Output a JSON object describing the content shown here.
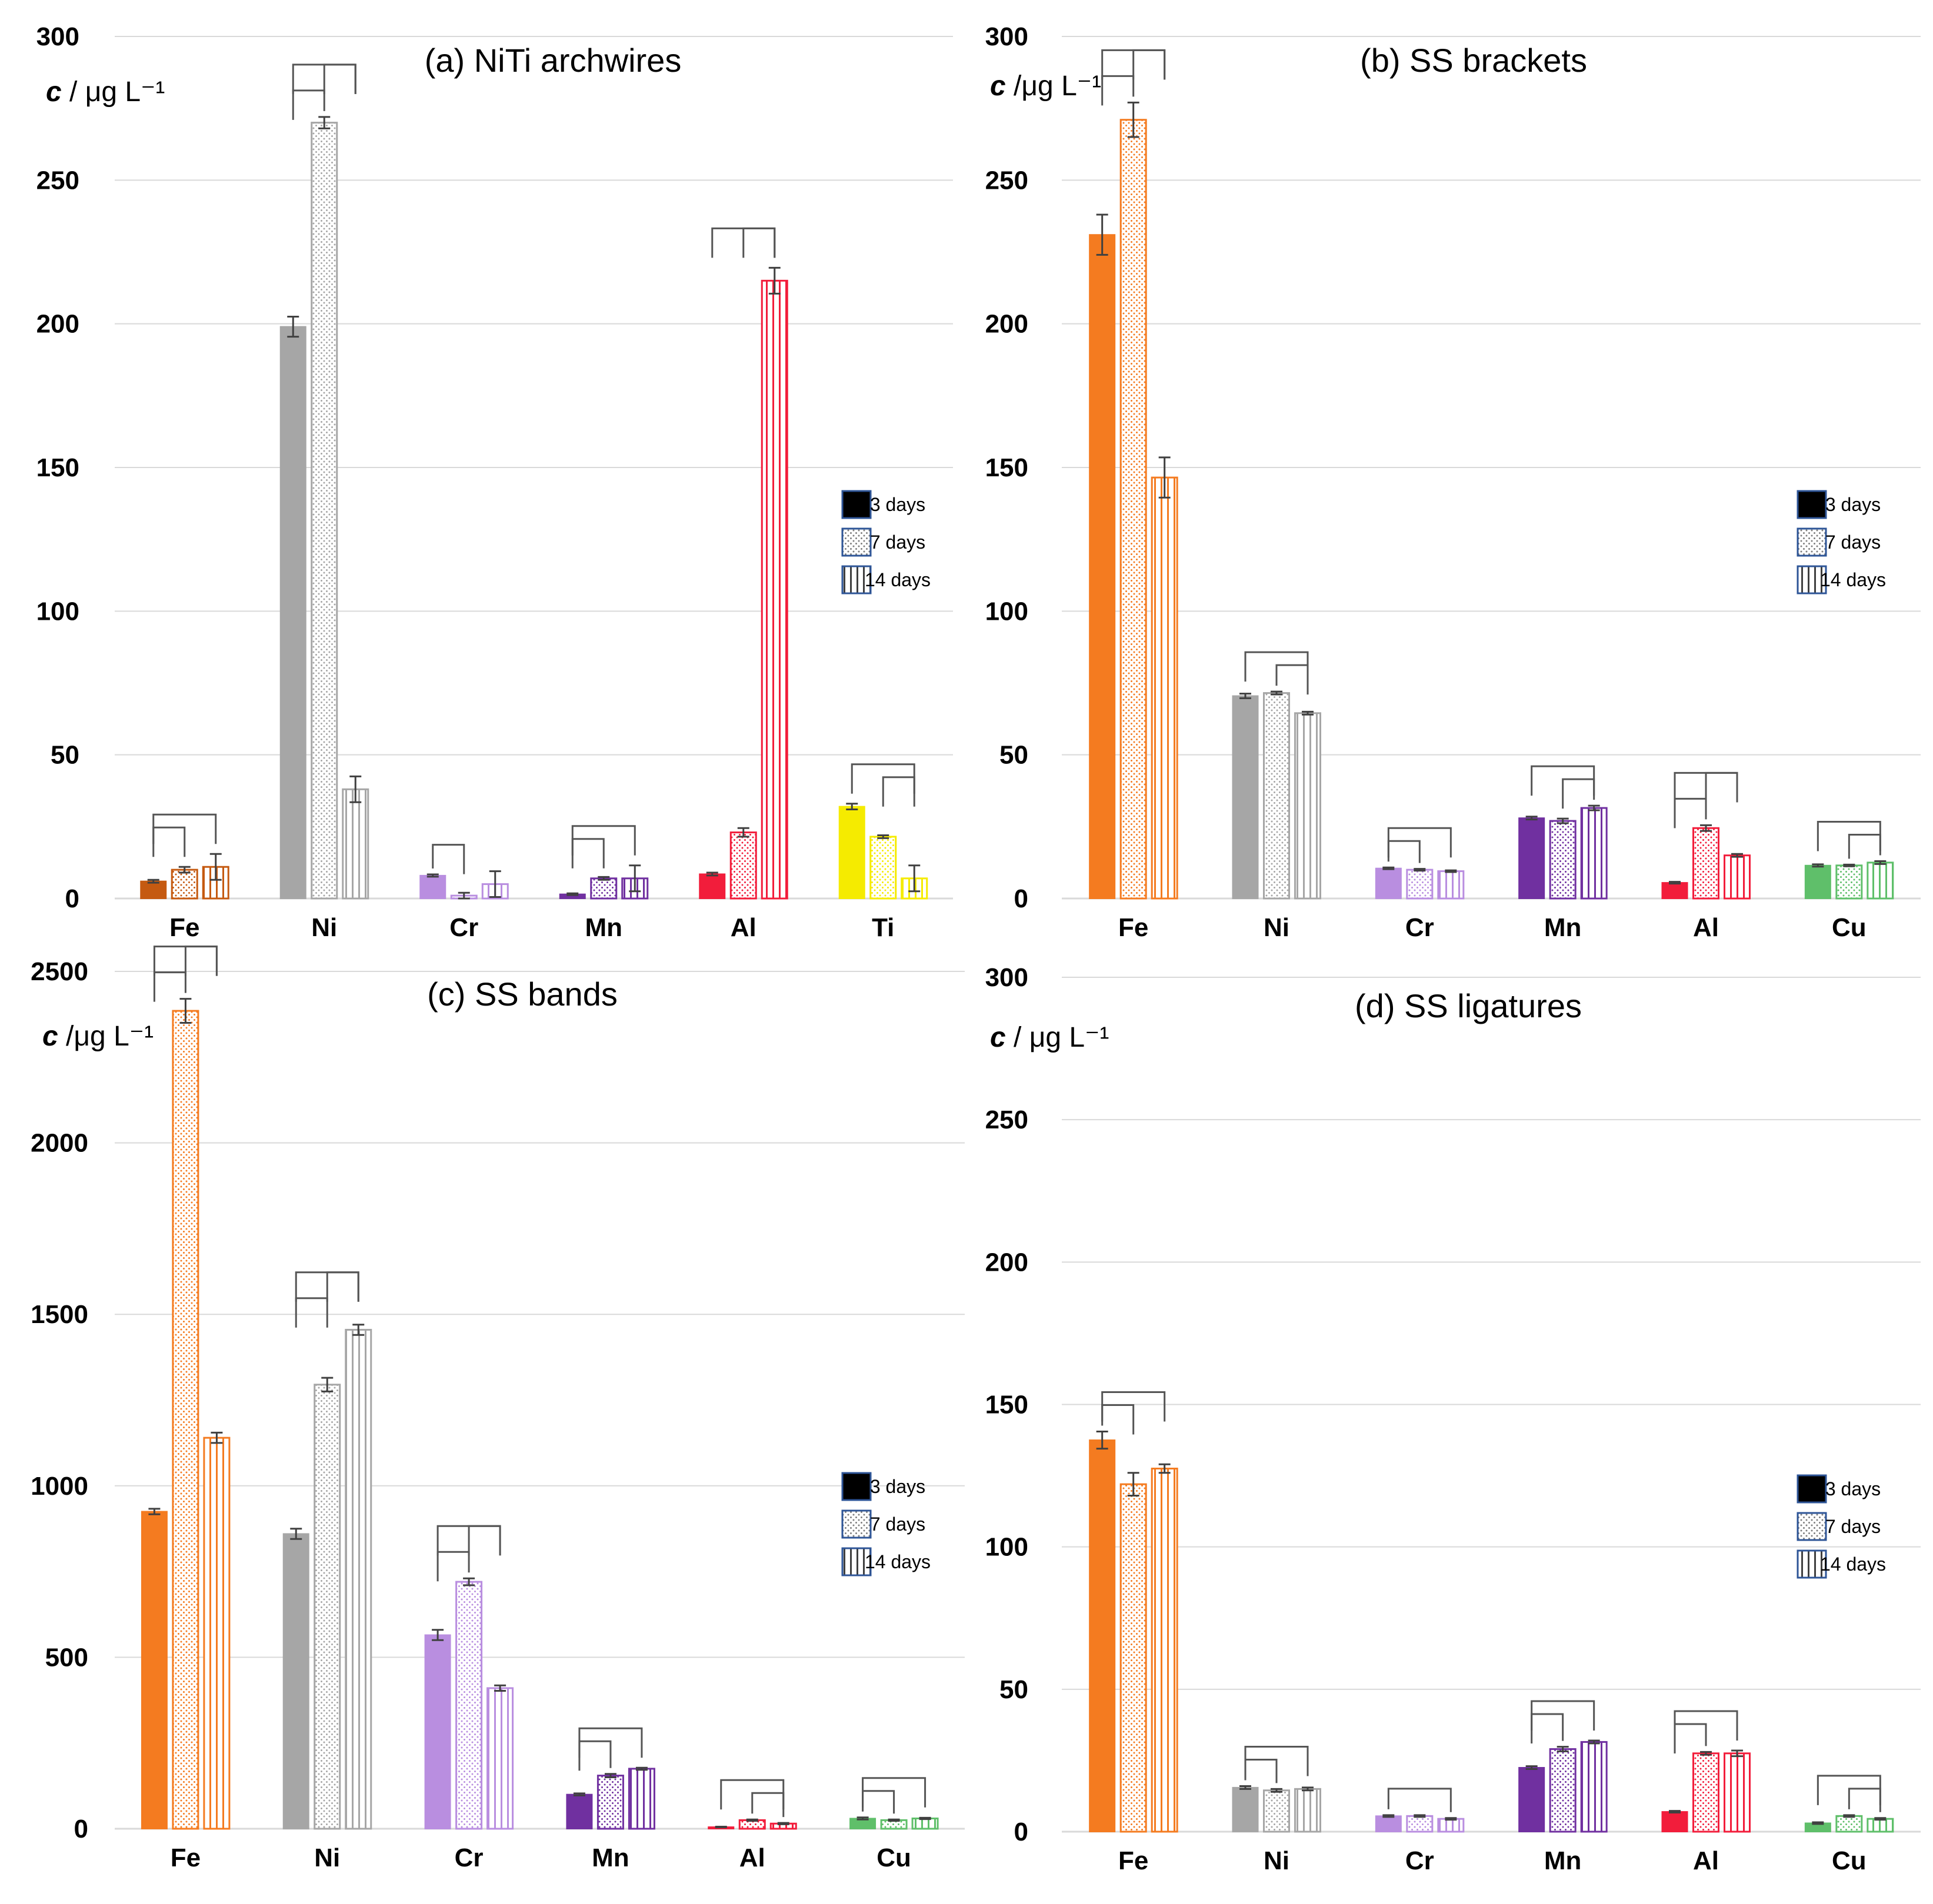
{
  "legend": {
    "labels": [
      "3 days",
      "7 days",
      "14 days"
    ]
  },
  "colors": {
    "Fe": "#f47b20",
    "Ni": "#a6a6a6",
    "Cr": "#b98ee0",
    "Mn": "#7030a0",
    "Al": "#f21d3b",
    "Ti": "#f5eb00",
    "Cu": "#5fbf6a",
    "Fe_dark": "#c55a11"
  },
  "chart_data": [
    {
      "id": "a",
      "type": "bar",
      "title": "(a) NiTi archwires",
      "ylabel_var": "c",
      "ylabel_unit": " / μg L⁻¹",
      "ylim": [
        0,
        300
      ],
      "yticks": [
        0,
        50,
        100,
        150,
        200,
        250,
        300
      ],
      "categories": [
        "Fe",
        "Ni",
        "Cr",
        "Mn",
        "Al",
        "Ti"
      ],
      "series": [
        {
          "name": "3 days",
          "values": [
            6,
            199,
            8,
            1.5,
            8.5,
            32
          ],
          "errors": [
            0.5,
            3.5,
            0.4,
            0.3,
            0.5,
            1
          ]
        },
        {
          "name": "7 days",
          "values": [
            10,
            270,
            1,
            7,
            23,
            21.5
          ],
          "errors": [
            1,
            2,
            1,
            0.5,
            1.5,
            0.5
          ]
        },
        {
          "name": "14 days",
          "values": [
            11,
            38,
            5,
            7,
            215,
            7
          ],
          "errors": [
            4.5,
            4.5,
            4.5,
            4.5,
            4.5,
            4.5
          ]
        }
      ],
      "significance": [
        {
          "cat": "Fe",
          "pairs": [
            [
              0,
              1
            ],
            [
              0,
              2
            ]
          ]
        },
        {
          "cat": "Ni",
          "pairs": [
            [
              0,
              1
            ],
            [
              0,
              2
            ],
            [
              1,
              2
            ]
          ]
        },
        {
          "cat": "Cr",
          "pairs": [
            [
              0,
              1
            ]
          ]
        },
        {
          "cat": "Mn",
          "pairs": [
            [
              0,
              1
            ],
            [
              0,
              2
            ]
          ]
        },
        {
          "cat": "Al",
          "pairs": [
            [
              0,
              2
            ],
            [
              1,
              2
            ]
          ]
        },
        {
          "cat": "Ti",
          "pairs": [
            [
              1,
              2
            ],
            [
              0,
              2
            ]
          ]
        }
      ]
    },
    {
      "id": "b",
      "type": "bar",
      "title": "(b) SS brackets",
      "ylabel_var": "c",
      "ylabel_unit": " /μg L⁻¹",
      "ylim": [
        0,
        300
      ],
      "yticks": [
        0,
        50,
        100,
        150,
        200,
        250,
        300
      ],
      "categories": [
        "Fe",
        "Ni",
        "Cr",
        "Mn",
        "Al",
        "Cu"
      ],
      "series": [
        {
          "name": "3 days",
          "values": [
            231,
            70.5,
            10.5,
            28,
            5.5,
            11.5
          ],
          "errors": [
            7,
            0.8,
            0.3,
            0.5,
            0.3,
            0.4
          ]
        },
        {
          "name": "7 days",
          "values": [
            271,
            71.5,
            10,
            27,
            24.5,
            11.5
          ],
          "errors": [
            6,
            0.5,
            0.3,
            0.8,
            1,
            0.3
          ]
        },
        {
          "name": "14 days",
          "values": [
            146.5,
            64.5,
            9.5,
            31.5,
            15,
            12.5
          ],
          "errors": [
            7,
            0.5,
            0.3,
            0.8,
            0.5,
            0.5
          ]
        }
      ],
      "significance": [
        {
          "cat": "Fe",
          "pairs": [
            [
              0,
              1
            ],
            [
              0,
              2
            ],
            [
              1,
              2
            ]
          ]
        },
        {
          "cat": "Ni",
          "pairs": [
            [
              1,
              2
            ],
            [
              0,
              2
            ]
          ]
        },
        {
          "cat": "Cr",
          "pairs": [
            [
              0,
              1
            ],
            [
              0,
              2
            ]
          ]
        },
        {
          "cat": "Mn",
          "pairs": [
            [
              1,
              2
            ],
            [
              0,
              2
            ]
          ]
        },
        {
          "cat": "Al",
          "pairs": [
            [
              0,
              1
            ],
            [
              0,
              2
            ],
            [
              1,
              2
            ]
          ]
        },
        {
          "cat": "Cu",
          "pairs": [
            [
              1,
              2
            ],
            [
              0,
              2
            ]
          ]
        }
      ]
    },
    {
      "id": "c",
      "type": "bar",
      "title": "(c) SS bands",
      "ylabel_var": "c",
      "ylabel_unit": " /μg L⁻¹",
      "ylim": [
        0,
        2500
      ],
      "yticks": [
        0,
        500,
        1000,
        1500,
        2000,
        2500
      ],
      "categories": [
        "Fe",
        "Ni",
        "Cr",
        "Mn",
        "Al",
        "Cu"
      ],
      "series": [
        {
          "name": "3 days",
          "values": [
            925,
            860,
            565,
            100,
            5,
            30
          ],
          "errors": [
            8,
            15,
            15,
            3,
            1,
            3
          ]
        },
        {
          "name": "7 days",
          "values": [
            2385,
            1295,
            720,
            155,
            25,
            25
          ],
          "errors": [
            35,
            20,
            10,
            5,
            2,
            2
          ]
        },
        {
          "name": "14 days",
          "values": [
            1140,
            1455,
            410,
            175,
            15,
            30
          ],
          "errors": [
            15,
            15,
            8,
            3,
            2,
            2
          ]
        }
      ],
      "significance": [
        {
          "cat": "Fe",
          "pairs": [
            [
              0,
              1
            ],
            [
              0,
              2
            ],
            [
              1,
              2
            ]
          ]
        },
        {
          "cat": "Ni",
          "pairs": [
            [
              0,
              1
            ],
            [
              0,
              2
            ],
            [
              1,
              2
            ]
          ]
        },
        {
          "cat": "Cr",
          "pairs": [
            [
              0,
              1
            ],
            [
              0,
              2
            ],
            [
              1,
              2
            ]
          ]
        },
        {
          "cat": "Mn",
          "pairs": [
            [
              0,
              1
            ],
            [
              0,
              2
            ]
          ]
        },
        {
          "cat": "Al",
          "pairs": [
            [
              1,
              2
            ],
            [
              0,
              2
            ]
          ]
        },
        {
          "cat": "Cu",
          "pairs": [
            [
              0,
              1
            ],
            [
              0,
              2
            ]
          ]
        }
      ]
    },
    {
      "id": "d",
      "type": "bar",
      "title": "(d) SS ligatures",
      "ylabel_var": "c",
      "ylabel_unit": " / μg L⁻¹",
      "ylim": [
        0,
        300
      ],
      "yticks": [
        0,
        50,
        100,
        150,
        200,
        250,
        300
      ],
      "categories": [
        "Fe",
        "Ni",
        "Cr",
        "Mn",
        "Al",
        "Cu"
      ],
      "series": [
        {
          "name": "3 days",
          "values": [
            137.5,
            15.5,
            5.5,
            22.5,
            7,
            3
          ],
          "errors": [
            3,
            0.5,
            0.3,
            0.5,
            0.3,
            0.3
          ]
        },
        {
          "name": "7 days",
          "values": [
            122,
            14.5,
            5.5,
            29,
            27.5,
            5.5
          ],
          "errors": [
            4,
            0.5,
            0.3,
            0.8,
            0.5,
            0.3
          ]
        },
        {
          "name": "14 days",
          "values": [
            127.5,
            15,
            4.5,
            31.5,
            27.5,
            4.5
          ],
          "errors": [
            1.5,
            0.5,
            0.3,
            0.5,
            1,
            0.3
          ]
        }
      ],
      "significance": [
        {
          "cat": "Fe",
          "pairs": [
            [
              0,
              1
            ],
            [
              0,
              2
            ]
          ]
        },
        {
          "cat": "Ni",
          "pairs": [
            [
              0,
              1
            ],
            [
              0,
              2
            ]
          ]
        },
        {
          "cat": "Cr",
          "pairs": [
            [
              0,
              2
            ]
          ]
        },
        {
          "cat": "Mn",
          "pairs": [
            [
              0,
              1
            ],
            [
              0,
              2
            ]
          ]
        },
        {
          "cat": "Al",
          "pairs": [
            [
              0,
              1
            ],
            [
              0,
              2
            ]
          ]
        },
        {
          "cat": "Cu",
          "pairs": [
            [
              1,
              2
            ],
            [
              0,
              2
            ]
          ]
        }
      ]
    }
  ]
}
